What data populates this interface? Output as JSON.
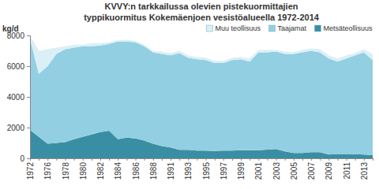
{
  "chart_data": {
    "type": "area",
    "stacked": true,
    "title": "KVVY:n tarkkailussa olevien pistekuormittajien\ntyppikuormitus Kokemäenjoen vesistöalueella 1972-2014",
    "y_label": "kg/d",
    "categories": [
      "1972",
      null,
      "1976",
      null,
      "1978",
      null,
      "1980",
      null,
      "1982",
      null,
      "1984",
      null,
      "1986",
      null,
      "1988",
      null,
      "1991",
      null,
      "1993",
      null,
      "1995",
      null,
      "1997",
      null,
      "1999",
      null,
      "2001",
      null,
      "2003",
      null,
      "2005",
      null,
      "2007",
      null,
      "2009",
      null,
      "2011",
      null,
      "2013",
      null
    ],
    "series": [
      {
        "name": "Metsäteollisuus",
        "color": "#3a8ea3",
        "values": [
          1850,
          1400,
          950,
          1000,
          1050,
          1250,
          1400,
          1550,
          1700,
          1800,
          1250,
          1350,
          1300,
          1150,
          950,
          800,
          700,
          550,
          550,
          500,
          500,
          480,
          500,
          500,
          520,
          520,
          520,
          560,
          600,
          450,
          350,
          350,
          400,
          400,
          250,
          280,
          280,
          270,
          250,
          200
        ]
      },
      {
        "name": "Taajamat",
        "color": "#92cfe2",
        "values": [
          5950,
          4100,
          5050,
          5800,
          6050,
          5950,
          5900,
          5750,
          5650,
          5650,
          6350,
          6250,
          6250,
          6150,
          5950,
          6000,
          6000,
          6300,
          6000,
          5950,
          5900,
          5720,
          5700,
          5900,
          5930,
          5780,
          6380,
          6340,
          6350,
          6350,
          6450,
          6550,
          6600,
          6500,
          6250,
          6020,
          6220,
          6430,
          6650,
          6200
        ]
      },
      {
        "name": "Muu teollisuus",
        "color": "#dbeff6",
        "values": [
          200,
          1500,
          1100,
          400,
          200,
          200,
          100,
          200,
          150,
          100,
          100,
          100,
          100,
          100,
          100,
          150,
          150,
          150,
          150,
          150,
          150,
          150,
          150,
          150,
          150,
          200,
          150,
          150,
          100,
          150,
          100,
          150,
          150,
          200,
          200,
          200,
          200,
          150,
          200,
          400
        ]
      }
    ],
    "ylim": [
      0,
      8000
    ],
    "yticks": [
      0,
      2000,
      4000,
      6000,
      8000
    ],
    "grid": false,
    "legend": "top-right"
  }
}
